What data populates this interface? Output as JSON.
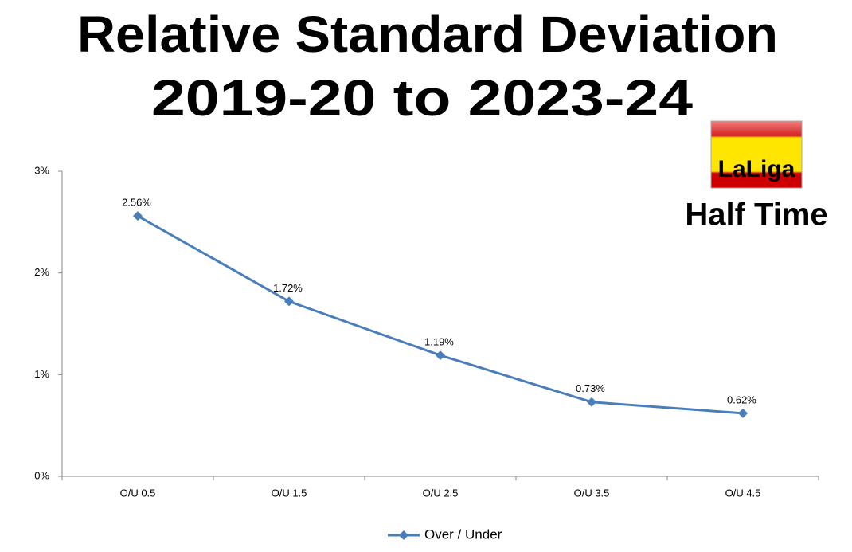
{
  "chart_data": {
    "type": "line",
    "title": "Relative Standard Deviation",
    "subtitle": "2019-20 to 2023-24",
    "annotations": [
      "LaLiga",
      "Half Time"
    ],
    "categories": [
      "O/U 0.5",
      "O/U 1.5",
      "O/U 2.5",
      "O/U 3.5",
      "O/U 4.5"
    ],
    "series": [
      {
        "name": "Over / Under",
        "color": "#4a7ebb",
        "values": [
          2.56,
          1.72,
          1.19,
          0.73,
          0.62
        ],
        "value_labels": [
          "2.56%",
          "1.72%",
          "1.19%",
          "0.73%",
          "0.62%"
        ]
      }
    ],
    "ylim": [
      0,
      3
    ],
    "yticks": [
      {
        "value": 0,
        "label": "0%"
      },
      {
        "value": 1,
        "label": "1%"
      },
      {
        "value": 2,
        "label": "2%"
      },
      {
        "value": 3,
        "label": "3%"
      }
    ],
    "grid": false,
    "legend": "bottom"
  }
}
